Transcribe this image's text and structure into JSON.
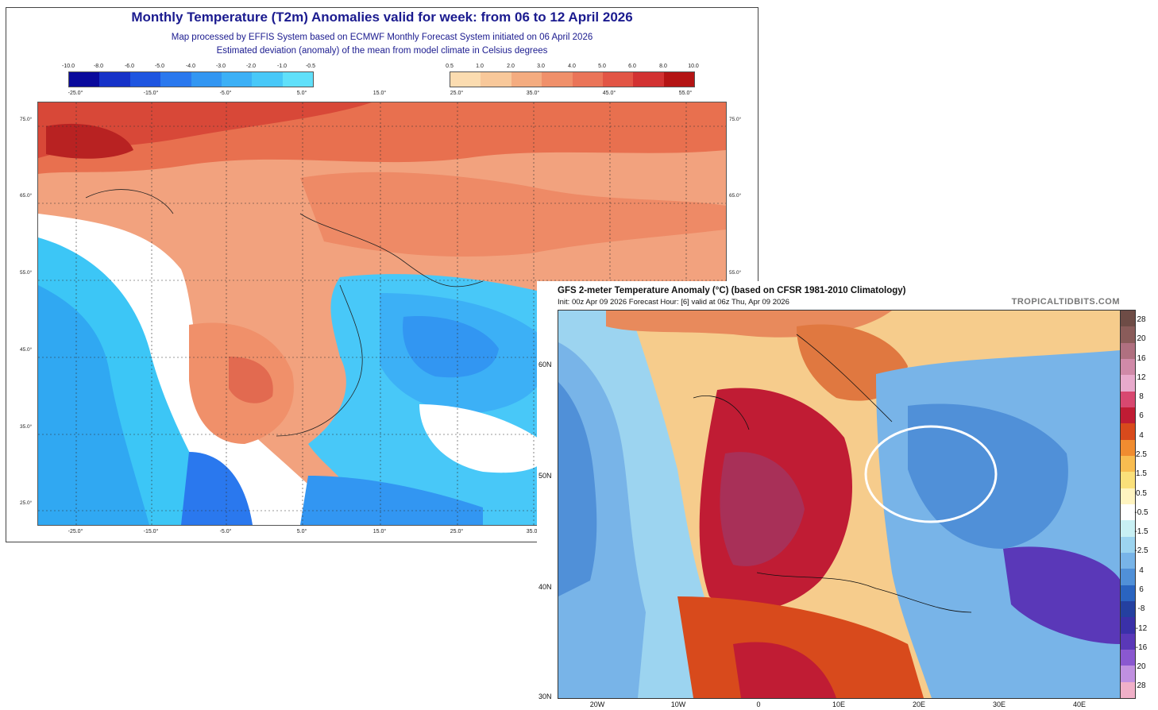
{
  "ecmwf": {
    "title": "Monthly Temperature (T2m) Anomalies valid for week: from 06 to 12 April 2026",
    "subtitle1": "Map processed by EFFIS System based on ECMWF Monthly Forecast System initiated on 06 April 2026",
    "subtitle2": "Estimated deviation (anomaly) of the mean from model climate in Celsius degrees",
    "cold_ticks": [
      "-10.0",
      "-8.0",
      "-6.0",
      "-5.0",
      "-4.0",
      "-3.0",
      "-2.0",
      "-1.0",
      "-0.5"
    ],
    "warm_ticks": [
      "0.5",
      "1.0",
      "2.0",
      "3.0",
      "4.0",
      "5.0",
      "6.0",
      "8.0",
      "10.0"
    ],
    "cold_colors": [
      "#0a0a9c",
      "#1632c8",
      "#1e55e0",
      "#2a78ee",
      "#3296f2",
      "#3cb0f6",
      "#48c8f8",
      "#60e0fa"
    ],
    "warm_colors": [
      "#fbdcb0",
      "#f8c89a",
      "#f4ac80",
      "#f0906a",
      "#ea7458",
      "#e25545",
      "#d23232",
      "#b41414"
    ],
    "top_lon_labels": [
      "-25.0°",
      "-15.0°",
      "-5.0°",
      "5.0°",
      "15.0°",
      "25.0°",
      "35.0°",
      "45.0°",
      "55.0°"
    ],
    "bottom_lon_labels": [
      "-25.0°",
      "-15.0°",
      "-5.0°",
      "5.0°",
      "15.0°",
      "25.0°",
      "35.0°"
    ],
    "lat_labels": [
      "75.0°",
      "65.0°",
      "55.0°",
      "45.0°",
      "35.0°",
      "25.0°"
    ]
  },
  "gfs": {
    "title": "GFS 2-meter Temperature Anomaly (°C) (based on CFSR 1981-2010 Climatology)",
    "subtitle": "Init: 00z Apr 09 2026   Forecast Hour: [6]   valid at 06z Thu, Apr 09 2026",
    "brand": "TROPICALTIDBITS.COM",
    "colorbar_labels": [
      "28",
      "20",
      "16",
      "12",
      "8",
      "6",
      "4",
      "2.5",
      "1.5",
      "0.5",
      "-0.5",
      "-1.5",
      "-2.5",
      "4",
      "6",
      "-8",
      "-12",
      "-16",
      "20",
      "28"
    ],
    "colorbar_colors": [
      "#6e4c46",
      "#8a5c5a",
      "#b07080",
      "#d08aa8",
      "#e8aacc",
      "#d84870",
      "#c01c34",
      "#d84a1c",
      "#f08c30",
      "#f8bc50",
      "#fae07a",
      "#fff4c0",
      "#ffffff",
      "#c8f0f4",
      "#9cd4f0",
      "#78b4e8",
      "#5090d8",
      "#2a64c0",
      "#2440a0",
      "#3a30a8",
      "#5a38b8",
      "#8a58d0",
      "#c090e0",
      "#f0b0c8"
    ],
    "lat_labels": [
      "60N",
      "50N",
      "40N",
      "30N"
    ],
    "lon_labels": [
      "20W",
      "10W",
      "0",
      "10E",
      "20E",
      "30E",
      "40E"
    ]
  }
}
